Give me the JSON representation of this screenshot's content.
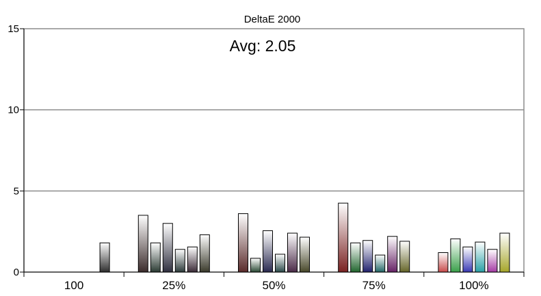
{
  "chart_data": {
    "type": "bar",
    "title": "DeltaE 2000",
    "annotation": "Avg: 2.05",
    "xlabel": "",
    "ylabel": "",
    "ylim": [
      0,
      15
    ],
    "yticks": [
      0,
      5,
      10,
      15
    ],
    "grid": true,
    "categories": [
      "100",
      "25%",
      "50%",
      "75%",
      "100%"
    ],
    "groups": [
      {
        "category": "100",
        "bars": [
          {
            "value": 1.8,
            "color": "#2e2e2e"
          }
        ]
      },
      {
        "category": "25%",
        "bars": [
          {
            "value": 3.5,
            "color": "#3b2b2b"
          },
          {
            "value": 1.8,
            "color": "#2b3b33"
          },
          {
            "value": 3.0,
            "color": "#2f2f3f"
          },
          {
            "value": 1.4,
            "color": "#2b3a3a"
          },
          {
            "value": 1.55,
            "color": "#3b2b38"
          },
          {
            "value": 2.3,
            "color": "#3a3a2b"
          }
        ]
      },
      {
        "category": "50%",
        "bars": [
          {
            "value": 3.6,
            "color": "#5a2a2a"
          },
          {
            "value": 0.85,
            "color": "#2a4a35"
          },
          {
            "value": 2.55,
            "color": "#2a2a50"
          },
          {
            "value": 1.1,
            "color": "#2a4848"
          },
          {
            "value": 2.4,
            "color": "#4a2a48"
          },
          {
            "value": 2.15,
            "color": "#48482a"
          }
        ]
      },
      {
        "category": "75%",
        "bars": [
          {
            "value": 4.25,
            "color": "#7a2222"
          },
          {
            "value": 1.8,
            "color": "#22662f"
          },
          {
            "value": 1.95,
            "color": "#22226e"
          },
          {
            "value": 1.05,
            "color": "#226666"
          },
          {
            "value": 2.2,
            "color": "#662266"
          },
          {
            "value": 1.9,
            "color": "#66662a"
          }
        ]
      },
      {
        "category": "100%",
        "bars": [
          {
            "value": 1.2,
            "color": "#c84a4a"
          },
          {
            "value": 2.05,
            "color": "#3aa04a"
          },
          {
            "value": 1.55,
            "color": "#3a3ab4"
          },
          {
            "value": 1.85,
            "color": "#2aa0a6"
          },
          {
            "value": 1.4,
            "color": "#a43aa4"
          },
          {
            "value": 2.4,
            "color": "#a6a62a"
          }
        ]
      }
    ],
    "colors": {
      "grid": "#8c8c8c",
      "axis": "#000000",
      "bar_outline": "#000000"
    }
  }
}
